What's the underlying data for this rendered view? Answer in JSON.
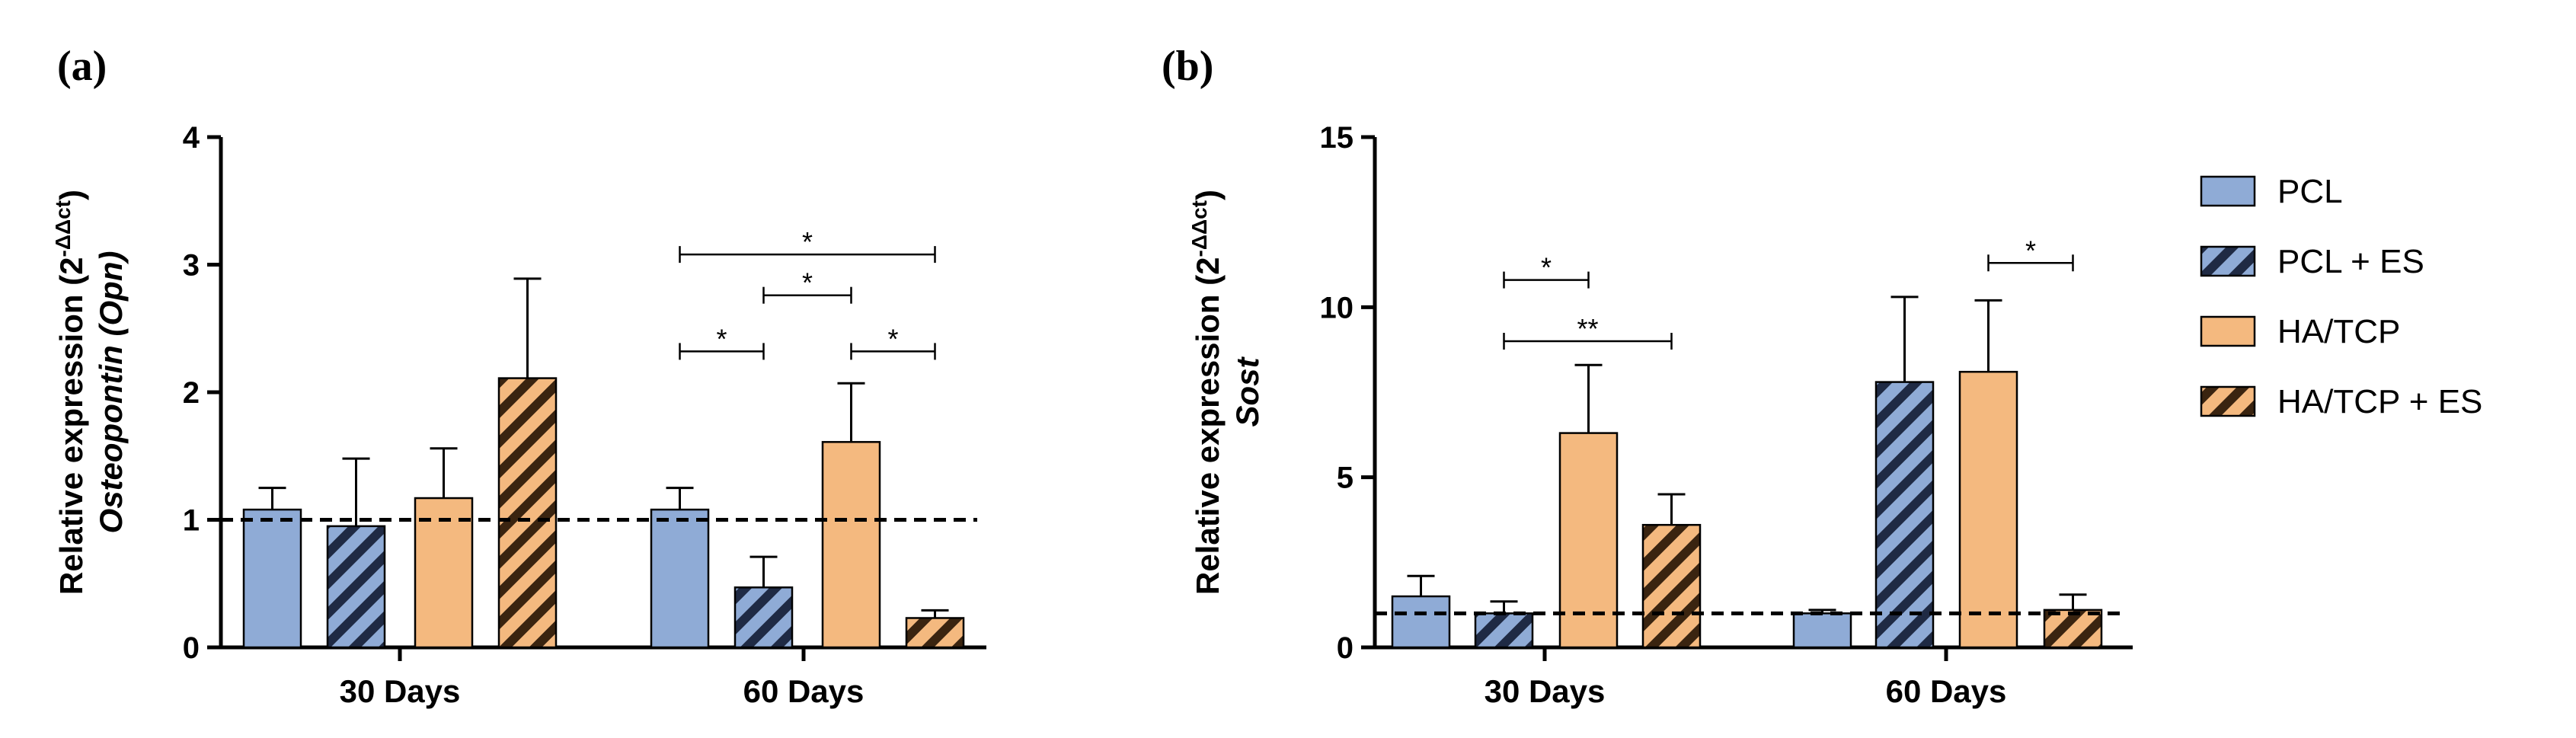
{
  "colors": {
    "pcl": "#8fabd6",
    "hatcp": "#f4b97f",
    "hatch_dark": "#1f2a44",
    "hatch_orange_dark": "#3a2410"
  },
  "legend": {
    "entries": [
      {
        "label": "PCL",
        "fill": "pcl",
        "hatch": false
      },
      {
        "label": "PCL + ES",
        "fill": "pcl",
        "hatch": true
      },
      {
        "label": "HA/TCP",
        "fill": "hatcp",
        "hatch": false
      },
      {
        "label": "HA/TCP + ES",
        "fill": "hatcp",
        "hatch": true
      }
    ]
  },
  "chart_data": [
    {
      "panel": "(a)",
      "type": "bar",
      "ylabel_line1": "Relative expression (2",
      "ylabel_sup": "-ΔΔct",
      "ylabel_close": ")",
      "ylabel_line2": "Osteopontin (Opn)",
      "ylim": [
        0,
        4
      ],
      "yticks": [
        "0",
        "1",
        "2",
        "3",
        "4"
      ],
      "reference_line": 1,
      "categories": [
        "30 Days",
        "60 Days"
      ],
      "series": [
        {
          "name": "PCL",
          "values": [
            1.08,
            1.08
          ],
          "errors": [
            0.17,
            0.17
          ]
        },
        {
          "name": "PCL + ES",
          "values": [
            0.95,
            0.47
          ],
          "errors": [
            0.53,
            0.24
          ]
        },
        {
          "name": "HA/TCP",
          "values": [
            1.17,
            1.61
          ],
          "errors": [
            0.39,
            0.46
          ]
        },
        {
          "name": "HA/TCP + ES",
          "values": [
            2.11,
            0.23
          ],
          "errors": [
            0.78,
            0.06
          ]
        }
      ],
      "significance": [
        {
          "category": 1,
          "from": 0,
          "to": 3,
          "y": 3.08,
          "label": "*"
        },
        {
          "category": 1,
          "from": 1,
          "to": 2,
          "y": 2.76,
          "label": "*"
        },
        {
          "category": 1,
          "from": 0,
          "to": 1,
          "y": 2.32,
          "label": "*"
        },
        {
          "category": 1,
          "from": 2,
          "to": 3,
          "y": 2.32,
          "label": "*"
        }
      ]
    },
    {
      "panel": "(b)",
      "type": "bar",
      "ylabel_line1": "Relative expression (2",
      "ylabel_sup": "-ΔΔct",
      "ylabel_close": ")",
      "ylabel_line2": "Sost",
      "ylim": [
        0,
        15
      ],
      "yticks": [
        "0",
        "5",
        "10",
        "15"
      ],
      "reference_line": 1,
      "categories": [
        "30 Days",
        "60 Days"
      ],
      "series": [
        {
          "name": "PCL",
          "values": [
            1.5,
            1.0
          ],
          "errors": [
            0.6,
            0.1
          ]
        },
        {
          "name": "PCL + ES",
          "values": [
            1.0,
            7.8
          ],
          "errors": [
            0.35,
            2.5
          ]
        },
        {
          "name": "HA/TCP",
          "values": [
            6.3,
            8.1
          ],
          "errors": [
            2.0,
            2.1
          ]
        },
        {
          "name": "HA/TCP + ES",
          "values": [
            3.6,
            1.1
          ],
          "errors": [
            0.9,
            0.45
          ]
        }
      ],
      "significance": [
        {
          "category": 0,
          "from": 1,
          "to": 2,
          "y": 10.8,
          "label": "*"
        },
        {
          "category": 0,
          "from": 1,
          "to": 3,
          "y": 9.0,
          "label": "**"
        },
        {
          "category": 1,
          "from": 2,
          "to": 3,
          "y": 11.3,
          "label": "*"
        }
      ]
    }
  ]
}
